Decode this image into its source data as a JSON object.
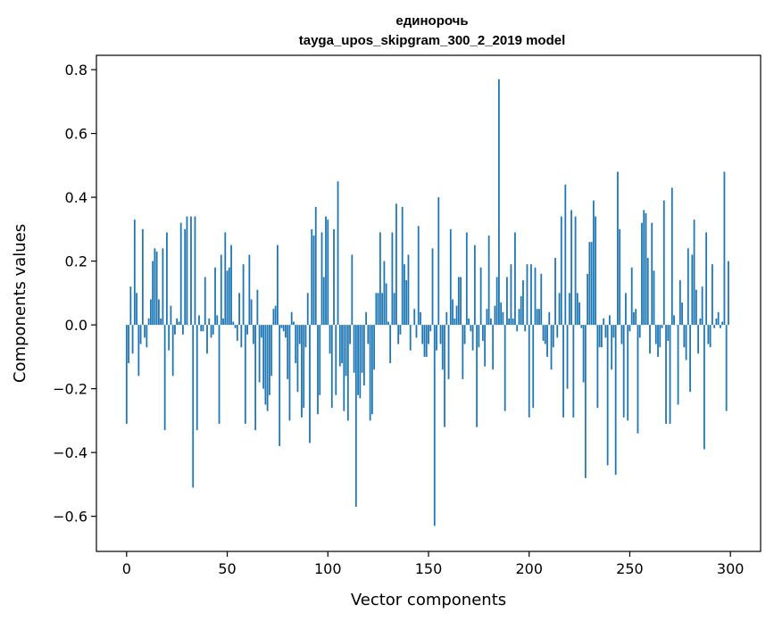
{
  "chart_data": {
    "type": "bar",
    "title_line1": "единорочь",
    "title_line2": "tayga_upos_skipgram_300_2_2019 model",
    "xlabel": "Vector components",
    "ylabel": "Components values",
    "xlim": [
      -15,
      315
    ],
    "ylim": [
      -0.71,
      0.845
    ],
    "x_ticks": [
      0,
      50,
      100,
      150,
      200,
      250,
      300
    ],
    "x_tick_labels": [
      "0",
      "50",
      "100",
      "150",
      "200",
      "250",
      "300"
    ],
    "y_ticks": [
      -0.6,
      -0.4,
      -0.2,
      0.0,
      0.2,
      0.4,
      0.6,
      0.8
    ],
    "y_tick_labels": [
      "−0.6",
      "−0.4",
      "−0.2",
      "0.0",
      "0.2",
      "0.4",
      "0.6",
      "0.8"
    ],
    "bar_color": "#1f77b4",
    "grid": false,
    "values": [
      -0.31,
      -0.12,
      0.12,
      -0.09,
      0.33,
      0.1,
      -0.16,
      -0.06,
      0.3,
      -0.04,
      -0.07,
      0.02,
      0.08,
      0.2,
      0.24,
      0.23,
      0.08,
      0.02,
      0.24,
      -0.33,
      0.29,
      -0.08,
      0.06,
      -0.16,
      -0.03,
      0.02,
      0.01,
      0.32,
      -0.03,
      0.3,
      0.34,
      0.0,
      0.34,
      -0.51,
      0.34,
      -0.33,
      0.03,
      -0.02,
      -0.02,
      0.15,
      -0.09,
      0.02,
      -0.04,
      -0.03,
      0.18,
      0.03,
      -0.31,
      0.22,
      0.02,
      0.29,
      0.17,
      0.18,
      0.25,
      0.01,
      -0.01,
      -0.05,
      0.1,
      -0.07,
      0.19,
      -0.31,
      -0.03,
      0.22,
      0.08,
      -0.06,
      -0.33,
      0.11,
      -0.18,
      -0.04,
      -0.2,
      -0.25,
      -0.27,
      -0.22,
      -0.16,
      0.05,
      0.06,
      0.25,
      -0.38,
      -0.01,
      -0.02,
      -0.04,
      -0.17,
      -0.3,
      0.04,
      0.01,
      -0.12,
      -0.21,
      -0.06,
      -0.29,
      -0.26,
      -0.07,
      0.1,
      -0.37,
      0.3,
      0.28,
      0.37,
      -0.28,
      -0.22,
      0.29,
      0.15,
      0.34,
      0.33,
      -0.09,
      -0.26,
      0.3,
      -0.22,
      0.45,
      -0.13,
      -0.12,
      -0.27,
      -0.16,
      -0.3,
      -0.06,
      0.22,
      -0.15,
      -0.57,
      -0.22,
      -0.23,
      -0.15,
      -0.19,
      0.04,
      -0.06,
      -0.3,
      -0.28,
      -0.14,
      0.1,
      0.1,
      0.29,
      0.1,
      0.2,
      0.13,
      0.01,
      -0.12,
      0.29,
      0.1,
      0.38,
      -0.06,
      -0.03,
      0.37,
      0.19,
      0.14,
      0.22,
      -0.08,
      0.0,
      0.05,
      -0.04,
      0.31,
      0.04,
      -0.06,
      -0.1,
      -0.1,
      -0.06,
      -0.02,
      0.24,
      -0.63,
      -0.08,
      0.4,
      -0.06,
      -0.14,
      -0.32,
      0.04,
      -0.17,
      0.3,
      0.08,
      0.02,
      0.06,
      0.15,
      0.15,
      -0.17,
      -0.06,
      0.29,
      0.02,
      -0.02,
      -0.08,
      0.25,
      -0.32,
      -0.07,
      0.18,
      -0.05,
      -0.13,
      0.05,
      0.28,
      0.02,
      -0.14,
      0.06,
      0.15,
      0.77,
      0.07,
      0.04,
      -0.27,
      0.15,
      0.02,
      0.19,
      0.02,
      0.29,
      -0.02,
      0.05,
      0.09,
      0.14,
      -0.02,
      0.19,
      -0.29,
      0.19,
      -0.26,
      0.18,
      0.05,
      0.05,
      0.16,
      -0.05,
      -0.06,
      -0.1,
      0.04,
      -0.14,
      -0.07,
      0.21,
      -0.04,
      0.1,
      0.34,
      -0.29,
      0.44,
      -0.2,
      0.1,
      0.36,
      -0.29,
      0.34,
      0.1,
      0.07,
      -0.01,
      -0.18,
      -0.48,
      0.16,
      0.26,
      0.26,
      0.39,
      0.34,
      -0.26,
      -0.07,
      -0.07,
      0.02,
      -0.04,
      -0.44,
      0.03,
      -0.14,
      -0.04,
      -0.47,
      0.48,
      0.3,
      -0.06,
      -0.29,
      0.1,
      -0.3,
      -0.02,
      0.18,
      0.04,
      0.05,
      -0.34,
      -0.04,
      0.32,
      0.36,
      0.35,
      0.21,
      -0.09,
      0.32,
      0.17,
      -0.06,
      -0.1,
      -0.07,
      -0.01,
      0.39,
      -0.31,
      -0.05,
      -0.31,
      0.43,
      0.03,
      0.0,
      -0.25,
      0.14,
      0.07,
      -0.07,
      -0.11,
      0.24,
      -0.21,
      0.22,
      0.33,
      0.11,
      -0.09,
      0.02,
      0.12,
      -0.39,
      0.29,
      -0.06,
      -0.07,
      0.19,
      -0.01,
      0.02,
      0.04,
      -0.01,
      0.01,
      0.48,
      -0.27,
      0.2
    ]
  }
}
